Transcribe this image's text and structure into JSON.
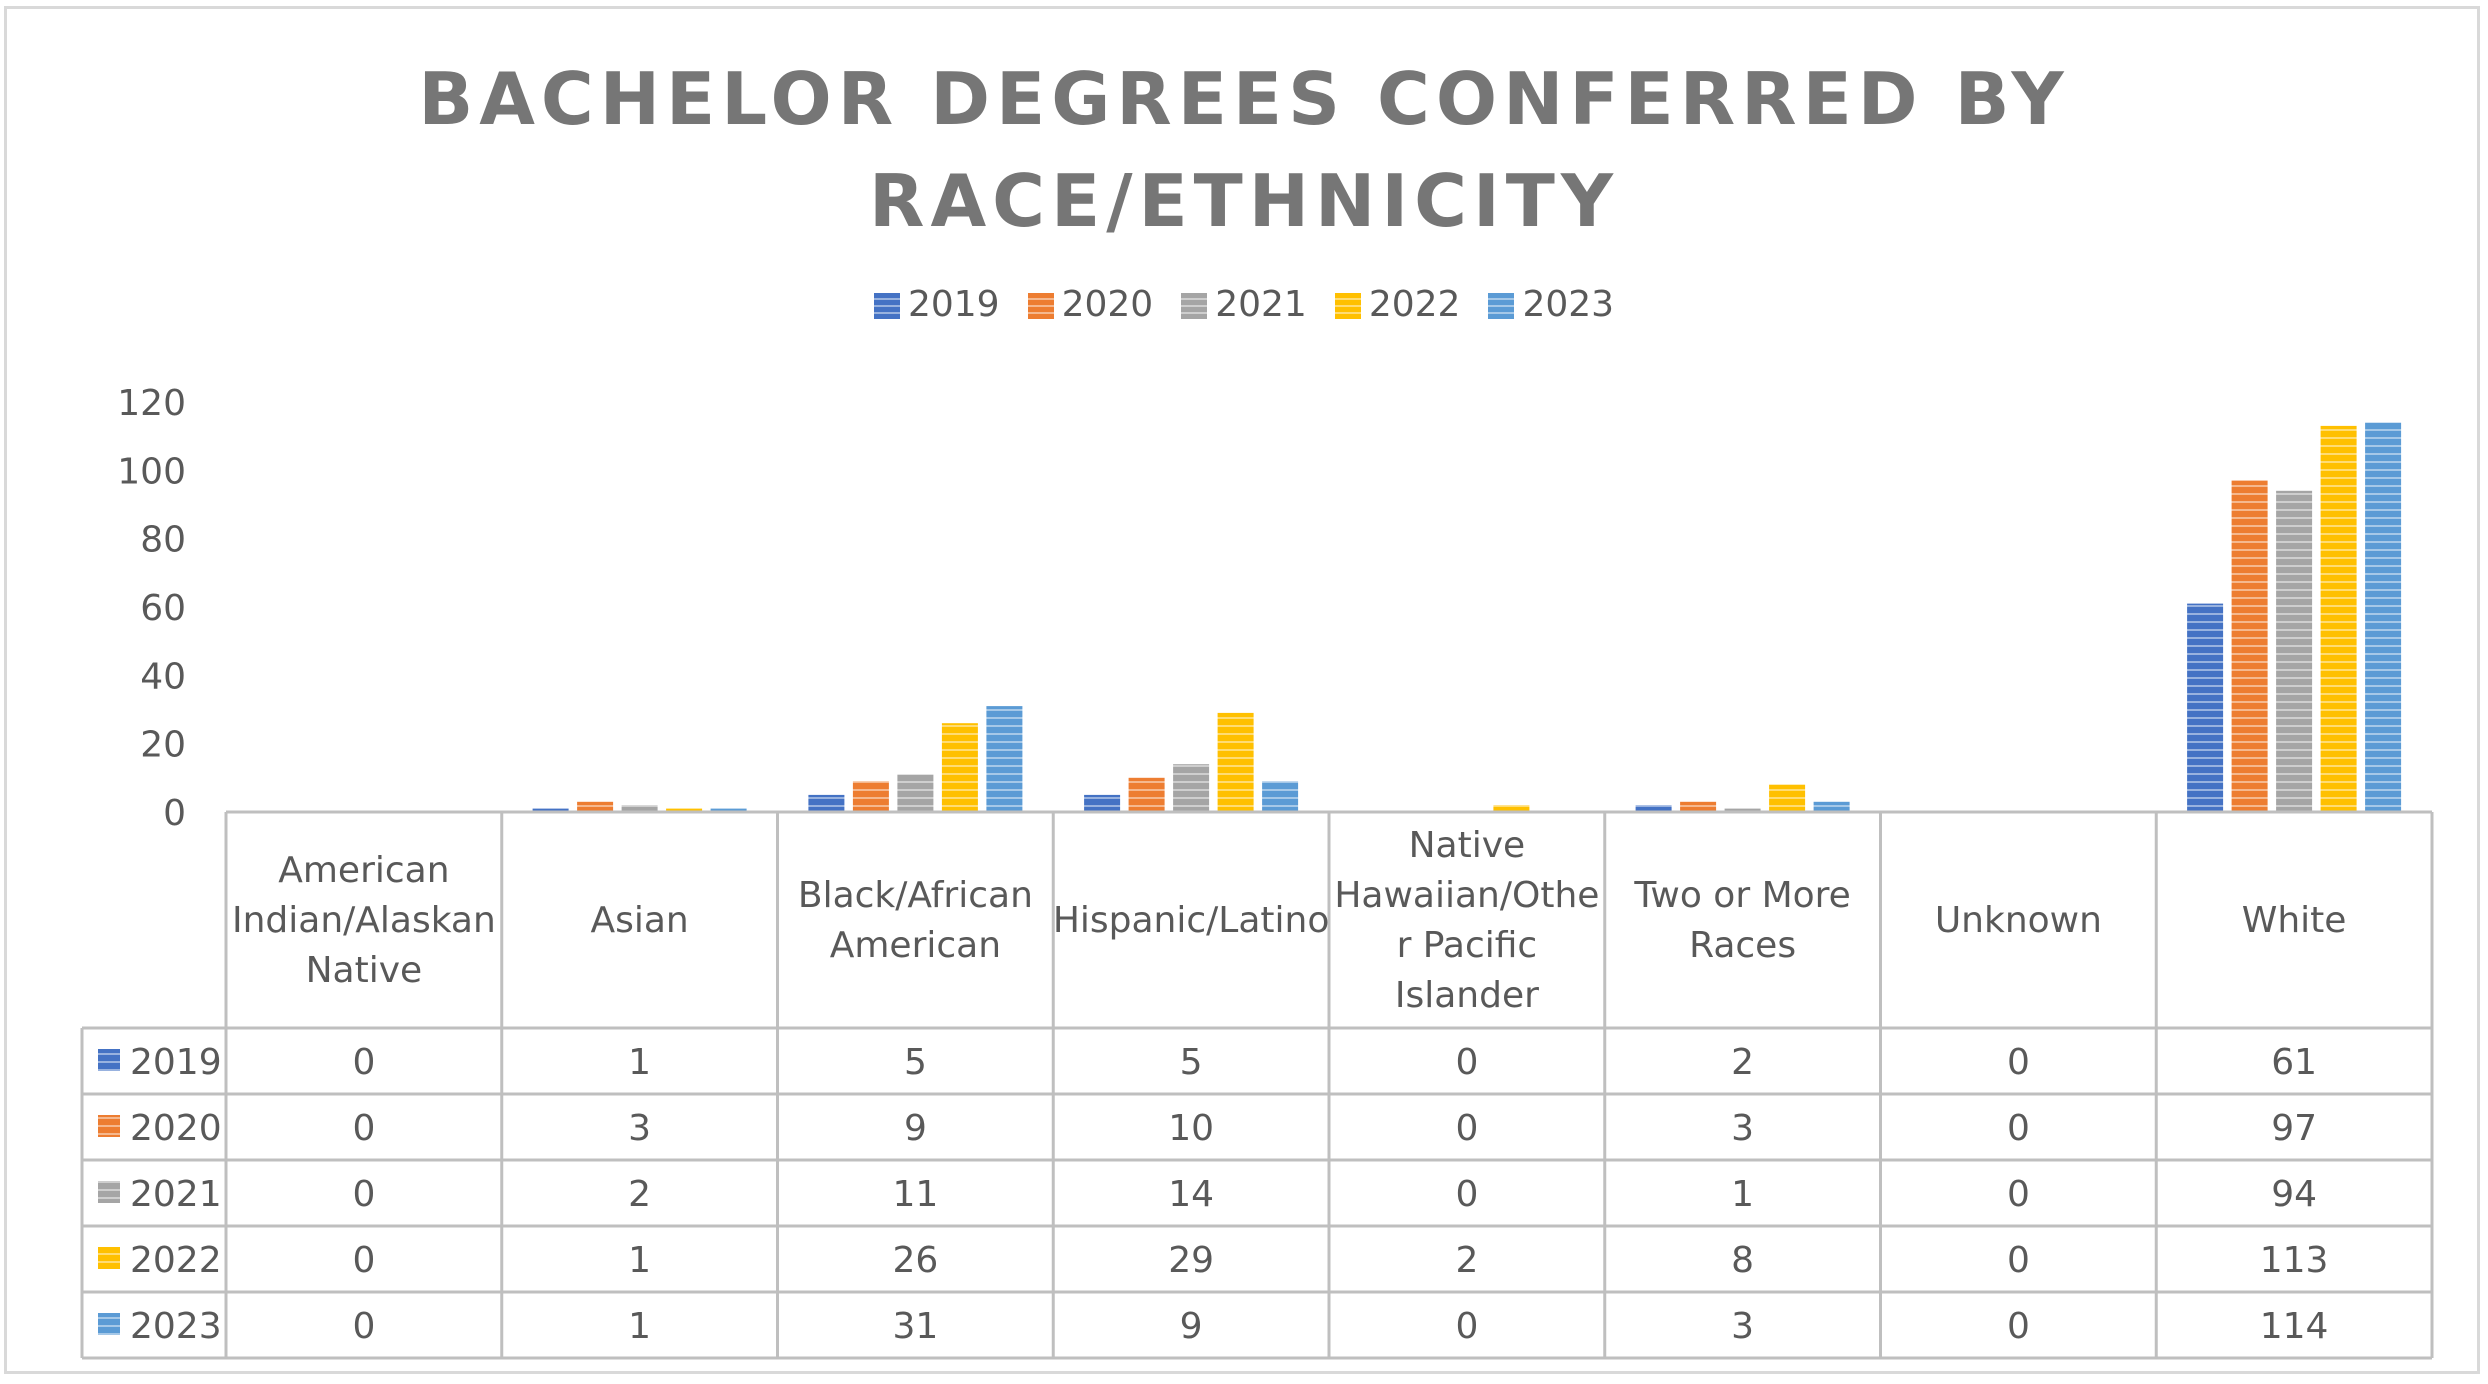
{
  "chart_data": {
    "type": "bar",
    "title_lines": [
      "BACHELOR DEGREES CONFERRED BY",
      "RACE/ETHNICITY"
    ],
    "categories": [
      "American Indian/Alaskan Native",
      "Asian",
      "Black/African American",
      "Hispanic/Latino",
      "Native Hawaiian/Other Pacific Islander",
      "Two or More Races",
      "Unknown",
      "White"
    ],
    "category_display_lines": [
      [
        "American",
        "Indian/Alaskan",
        "Native"
      ],
      [
        "Asian"
      ],
      [
        "Black/African",
        "American"
      ],
      [
        "Hispanic/Latino"
      ],
      [
        "Native",
        "Hawaiian/Othe",
        "r Pacific",
        "Islander"
      ],
      [
        "Two or More",
        "Races"
      ],
      [
        "Unknown"
      ],
      [
        "White"
      ]
    ],
    "series": [
      {
        "name": "2019",
        "color": "#4472c4",
        "values": [
          0,
          1,
          5,
          5,
          0,
          2,
          0,
          61
        ]
      },
      {
        "name": "2020",
        "color": "#ed7d31",
        "values": [
          0,
          3,
          9,
          10,
          0,
          3,
          0,
          97
        ]
      },
      {
        "name": "2021",
        "color": "#a5a5a5",
        "values": [
          0,
          2,
          11,
          14,
          0,
          1,
          0,
          94
        ]
      },
      {
        "name": "2022",
        "color": "#ffc000",
        "values": [
          0,
          1,
          26,
          29,
          2,
          8,
          0,
          113
        ]
      },
      {
        "name": "2023",
        "color": "#5b9bd5",
        "values": [
          0,
          1,
          31,
          9,
          0,
          3,
          0,
          114
        ]
      }
    ],
    "ylim": [
      0,
      120
    ],
    "yticks": [
      0,
      20,
      40,
      60,
      80,
      100,
      120
    ],
    "grid": false,
    "legend_position": "top",
    "data_table": true
  }
}
